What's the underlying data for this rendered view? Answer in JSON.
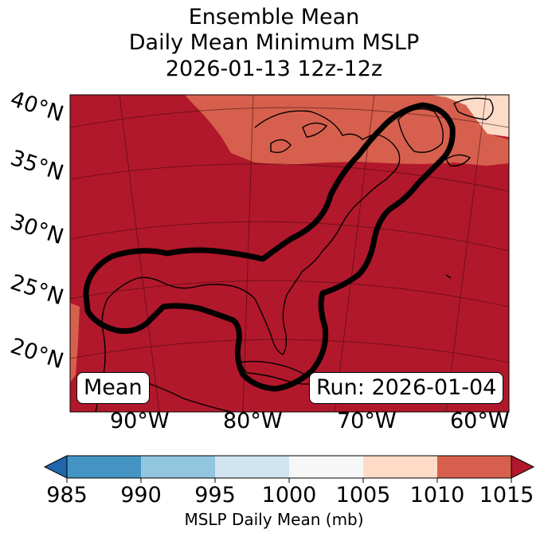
{
  "title": {
    "line1": "Ensemble Mean",
    "line2": "Daily Mean Minimum MSLP",
    "line3": "2026-01-13 12z-12z"
  },
  "map": {
    "lat_labels": [
      "40°N",
      "35°N",
      "30°N",
      "25°N",
      "20°N"
    ],
    "lon_labels": [
      "90°W",
      "80°W",
      "70°W",
      "60°W"
    ],
    "mean_label": "Mean",
    "run_label": "Run: 2026-01-04",
    "colors": {
      "dark_red": "#b2182b",
      "mid_red": "#d6604d",
      "light_peach": "#fddbc7",
      "contour": "#000000"
    }
  },
  "colorbar": {
    "ticks": [
      "985",
      "990",
      "995",
      "1000",
      "1005",
      "1010",
      "1015"
    ],
    "label": "MSLP Daily Mean (mb)",
    "colors": [
      "#2166ac",
      "#4393c3",
      "#92c5de",
      "#d1e5f0",
      "#f7f7f7",
      "#fddbc7",
      "#d6604d",
      "#b2182b"
    ]
  }
}
